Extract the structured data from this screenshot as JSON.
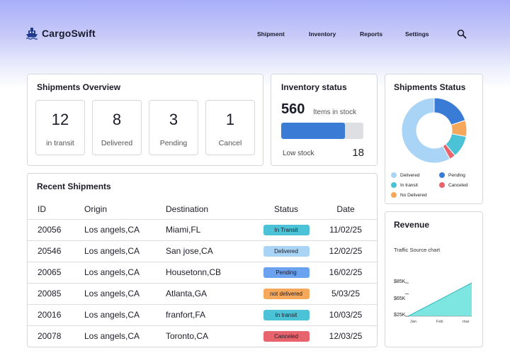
{
  "app": {
    "name": "CargoSwift"
  },
  "nav": {
    "items": [
      "Shipment",
      "Inventory",
      "Reports",
      "Settings"
    ]
  },
  "overview": {
    "title": "Shipments Overview",
    "stats": [
      {
        "value": "12",
        "label": "in transit"
      },
      {
        "value": "8",
        "label": "Delivered"
      },
      {
        "value": "3",
        "label": "Pending"
      },
      {
        "value": "1",
        "label": "Cancel"
      }
    ]
  },
  "inventory": {
    "title": "Inventory status",
    "count": "560",
    "count_label": "Items in stock",
    "stock_level": 0.78,
    "low_stock_label": "Low stock",
    "low_stock_value": "18",
    "colors": {
      "fill": "#3a7bd5",
      "track": "#dedfe2"
    }
  },
  "shipments_status": {
    "title": "Shipments Status",
    "legend": [
      {
        "label": "Delivered",
        "color": "#a9d4f5"
      },
      {
        "label": "Pending",
        "color": "#3a7bd5"
      },
      {
        "label": "In transit",
        "color": "#4cc2d6"
      },
      {
        "label": "Canceled",
        "color": "#e8646c"
      },
      {
        "label": "No Delivered",
        "color": "#f5a75a"
      }
    ],
    "chart_data": {
      "type": "pie",
      "donut": true,
      "slices": [
        {
          "label": "Delivered",
          "value": 58,
          "color": "#a9d4f5"
        },
        {
          "label": "Pending",
          "value": 20,
          "color": "#3a7bd5"
        },
        {
          "label": "No Delivered",
          "value": 8,
          "color": "#f5a75a"
        },
        {
          "label": "In transit",
          "value": 11,
          "color": "#4cc2d6"
        },
        {
          "label": "Canceled",
          "value": 3,
          "color": "#e8646c"
        }
      ]
    }
  },
  "recent": {
    "title": "Recent Shipments",
    "columns": [
      "ID",
      "Origin",
      "Destination",
      "Status",
      "Date"
    ],
    "rows": [
      {
        "id": "20056",
        "origin": "Los angels,CA",
        "destination": "Miami,FL",
        "status": "In Transit",
        "date": "11/02/25",
        "color": "#4cc2d6"
      },
      {
        "id": "20546",
        "origin": "Los angels,CA",
        "destination": "San jose,CA",
        "status": "Delivered",
        "date": "12/02/25",
        "color": "#a9d4f5"
      },
      {
        "id": "20065",
        "origin": "Los angels,CA",
        "destination": "Housetonn,CB",
        "status": "Pending",
        "date": "16/02/25",
        "color": "#6aa2f0"
      },
      {
        "id": "20085",
        "origin": "Los angels,CA",
        "destination": "Atlanta,GA",
        "status": "not delivered",
        "date": "5/03/25",
        "color": "#f5a75a"
      },
      {
        "id": "20016",
        "origin": "Los angels,CA",
        "destination": "franfort,FA",
        "status": "In transit",
        "date": "10/03/25",
        "color": "#4cc2d6"
      },
      {
        "id": "20078",
        "origin": "Los angels,CA",
        "destination": "Toronto,CA",
        "status": "Canceled",
        "date": "12/03/25",
        "color": "#e8646c"
      }
    ]
  },
  "revenue": {
    "title": "Revenue",
    "subtitle": "Traffic Source chart",
    "chart_data": {
      "type": "area",
      "categories": [
        "Jan",
        "Feb",
        "mar"
      ],
      "y_ticks": [
        "$85K",
        "$65K",
        "$25K"
      ],
      "y_values": [
        85,
        65,
        25
      ],
      "series": [
        {
          "x": [
            0,
            2
          ],
          "values": [
            25,
            85
          ]
        }
      ],
      "color": "#7de6e0"
    }
  }
}
